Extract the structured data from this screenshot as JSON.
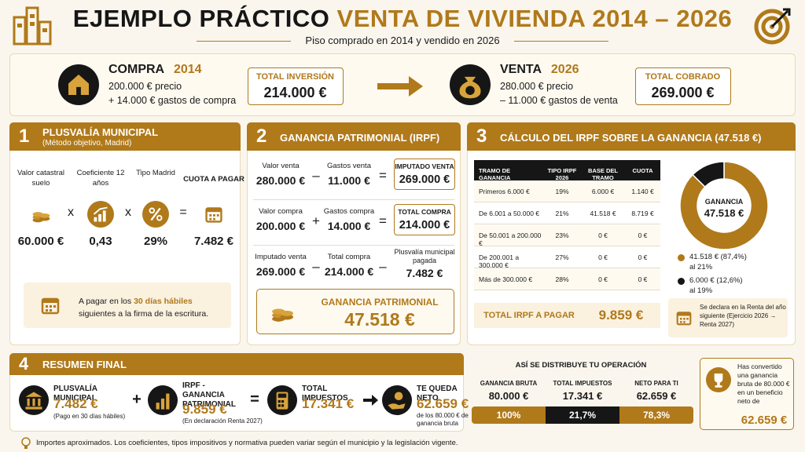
{
  "header": {
    "title_part1": "EJEMPLO PRÁCTICO",
    "title_part2": "VENTA DE VIVIENDA 2014 – 2026",
    "subtitle": "Piso comprado en 2014 y vendido en 2026"
  },
  "purchase": {
    "label": "COMPRA",
    "year": "2014",
    "line1": "200.000 € precio",
    "line2": "+ 14.000 € gastos de compra",
    "total_title": "TOTAL INVERSIÓN",
    "total": "214.000 €"
  },
  "sale": {
    "label": "VENTA",
    "year": "2026",
    "line1": "280.000 € precio",
    "line2": "– 11.000 € gastos de venta",
    "total_title": "TOTAL COBRADO",
    "total": "269.000 €"
  },
  "section1": {
    "number": "1",
    "title": "PLUSVALÍA MUNICIPAL",
    "subtitle": "(Método objetivo, Madrid)",
    "factors": [
      {
        "label": "Valor catastral suelo",
        "value": "60.000 €"
      },
      {
        "label": "Coeficiente 12 años",
        "value": "0,43"
      },
      {
        "label": "Tipo Madrid",
        "value": "29%"
      },
      {
        "label": "CUOTA A PAGAR",
        "value": "7.482 €"
      }
    ],
    "operators": [
      "x",
      "x",
      "="
    ],
    "note_before": "A pagar en los",
    "note_highlight": "30 días hábiles",
    "note_after": "siguientes a la firma de la escritura."
  },
  "section2": {
    "number": "2",
    "title": "GANANCIA PATRIMONIAL (IRPF)",
    "rows": [
      {
        "a_label": "Valor venta",
        "a_value": "280.000 €",
        "op1": "–",
        "b_label": "Gastos venta",
        "b_value": "11.000 €",
        "op2": "=",
        "r_label": "IMPUTADO VENTA",
        "r_value": "269.000 €"
      },
      {
        "a_label": "Valor compra",
        "a_value": "200.000 €",
        "op1": "+",
        "b_label": "Gastos compra",
        "b_value": "14.000 €",
        "op2": "=",
        "r_label": "TOTAL COMPRA",
        "r_value": "214.000 €"
      },
      {
        "a_label": "Imputado venta",
        "a_value": "269.000 €",
        "op1": "–",
        "b_label": "Total compra",
        "b_value": "214.000 €",
        "op2": "–",
        "r_label": "Plusvalía municipal pagada",
        "r_value": "7.482 €"
      }
    ],
    "result_title": "GANANCIA PATRIMONIAL",
    "result": "47.518 €"
  },
  "section3": {
    "number": "3",
    "title": "CÁLCULO DEL IRPF SOBRE LA GANANCIA (47.518 €)",
    "table": {
      "headers": [
        "TRAMO DE GANANCIA",
        "TIPO IRPF 2026",
        "BASE DEL TRAMO",
        "CUOTA"
      ],
      "rows": [
        [
          "Primeros 6.000 €",
          "19%",
          "6.000 €",
          "1.140 €"
        ],
        [
          "De 6.001 a 50.000 €",
          "21%",
          "41.518 €",
          "8.719 €"
        ],
        [
          "De 50.001 a 200.000 €",
          "23%",
          "0 €",
          "0 €"
        ],
        [
          "De 200.001 a 300.000 €",
          "27%",
          "0 €",
          "0 €"
        ],
        [
          "Más de 300.000 €",
          "28%",
          "0 €",
          "0 €"
        ]
      ]
    },
    "total_label": "TOTAL IRPF A PAGAR",
    "total": "9.859 €",
    "donut": {
      "center_title": "GANANCIA",
      "center_value": "47.518 €",
      "segments": [
        {
          "value": 87.4,
          "label": "41.518 € (87,4%)",
          "note": "al 21%",
          "color": "#b0791a"
        },
        {
          "value": 12.6,
          "label": "6.000 € (12,6%)",
          "note": "al 19%",
          "color": "#161616"
        }
      ]
    },
    "note": "Se declara en la Renta del año siguiente (Ejercicio 2026 → Renta 2027)"
  },
  "section4": {
    "number": "4",
    "title": "RESUMEN FINAL",
    "items": [
      {
        "title": "PLUSVALÍA MUNICIPAL",
        "value": "7.482 €",
        "note": "(Pago en 30 días hábiles)"
      },
      {
        "title": "IRPF - GANANCIA PATRIMONIAL",
        "value": "9.859 €",
        "note": "(En declaración Renta 2027)"
      },
      {
        "title": "TOTAL IMPUESTOS",
        "value": "17.341 €"
      },
      {
        "title": "TE QUEDA NETO",
        "value": "62.659 €",
        "note": "de los 80.000 € de ganancia bruta"
      }
    ],
    "operators": [
      "+",
      "="
    ]
  },
  "distribution": {
    "title": "ASÍ SE DISTRIBUYE TU OPERACIÓN",
    "columns": [
      {
        "label": "GANANCIA BRUTA",
        "value": "80.000 €",
        "pct": "100%"
      },
      {
        "label": "TOTAL IMPUESTOS",
        "value": "17.341 €",
        "pct": "21,7%"
      },
      {
        "label": "NETO PARA TI",
        "value": "62.659 €",
        "pct": "78,3%"
      }
    ]
  },
  "highlight": {
    "text": "Has convertido una ganancia bruta de 80.000 € en un beneficio neto de",
    "value": "62.659 €"
  },
  "footer": "Importes aproximados. Los coeficientes, tipos impositivos y normativa pueden variar según el municipio y la legislación vigente."
}
